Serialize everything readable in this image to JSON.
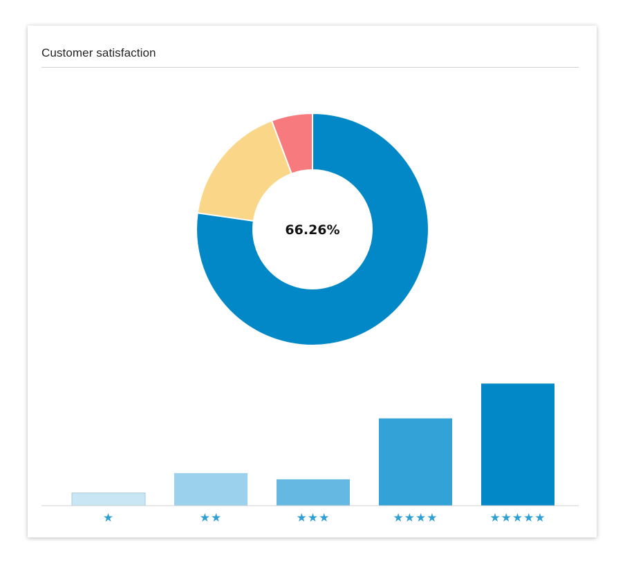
{
  "card": {
    "title": "Customer satisfaction"
  },
  "chart_data": [
    {
      "type": "pie",
      "title": "",
      "center_label": "66.26%",
      "slices": [
        {
          "value": 66.26,
          "color": "#0288c7"
        },
        {
          "value": 14.6,
          "color": "#fad688"
        },
        {
          "value": 4.9,
          "color": "#f77b7e"
        }
      ]
    },
    {
      "type": "bar",
      "title": "",
      "xlabel": "",
      "ylabel": "",
      "categories": [
        "★",
        "★★",
        "★★★",
        "★★★★",
        "★★★★★"
      ],
      "values": [
        5.1,
        13.1,
        10.6,
        35.1,
        49.1
      ],
      "colors": [
        "#c9e6f5",
        "#9bd1ec",
        "#65b8e1",
        "#33a2d6",
        "#0288c7"
      ],
      "label_color": "#2f9fd4",
      "ylim": [
        0,
        50
      ]
    }
  ]
}
